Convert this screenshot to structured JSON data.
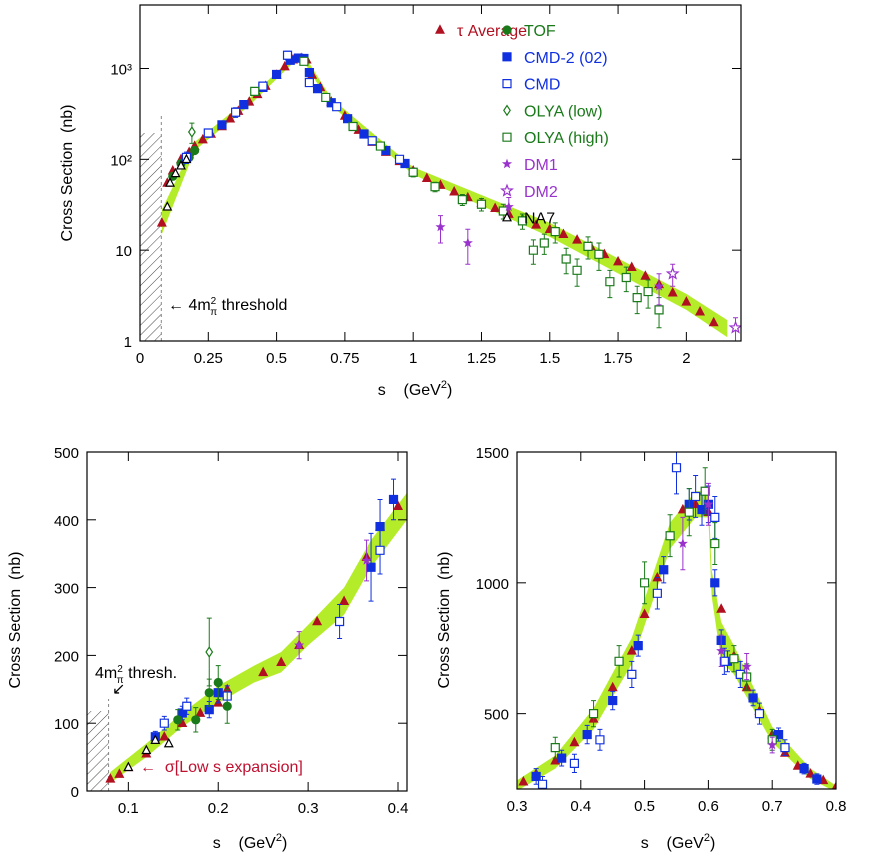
{
  "chart_data": [
    {
      "type": "scatter",
      "log": true,
      "xlim": [
        0,
        2.2
      ],
      "ylim": [
        1,
        5000
      ],
      "xticks": [
        0,
        0.25,
        0.5,
        0.75,
        1,
        1.25,
        1.5,
        1.75,
        2
      ],
      "yticks": [
        1,
        10,
        {
          "value": 100,
          "label": "10²"
        },
        {
          "value": 1000,
          "label": "10³"
        }
      ],
      "y_label": "Cross Section  (nb)",
      "x_label": {
        "text": "s    (GeV",
        "sup": "2",
        "close": ")"
      },
      "threshold": 0.078,
      "annotations": [
        {
          "text": "← 4m",
          "sup": "2",
          "sub": "π",
          "tail": " threshold",
          "color": "#000"
        }
      ],
      "band": {
        "color": "#b5ec2a",
        "x": [
          0.08,
          0.2,
          0.4,
          0.56,
          0.6,
          0.7,
          1.0,
          1.5,
          2.0,
          2.15
        ],
        "low": [
          15,
          125,
          390,
          1150,
          1180,
          390,
          68,
          14,
          2.2,
          1.1
        ],
        "high": [
          28,
          155,
          470,
          1350,
          1420,
          470,
          82,
          20,
          3.3,
          1.7
        ]
      },
      "series": [
        {
          "name": "τ Average",
          "color": "#b01020",
          "marker": "triangle",
          "x": [
            0.08,
            0.1,
            0.12,
            0.15,
            0.18,
            0.2,
            0.23,
            0.26,
            0.3,
            0.33,
            0.36,
            0.4,
            0.43,
            0.46,
            0.5,
            0.53,
            0.56,
            0.59,
            0.61,
            0.63,
            0.66,
            0.7,
            0.75,
            0.8,
            0.85,
            0.9,
            0.95,
            1.0,
            1.05,
            1.1,
            1.15,
            1.2,
            1.25,
            1.3,
            1.35,
            1.4,
            1.45,
            1.5,
            1.55,
            1.6,
            1.65,
            1.7,
            1.75,
            1.8,
            1.85,
            1.9,
            1.95,
            2.0,
            2.05,
            2.1
          ],
          "values": [
            20,
            55,
            75,
            100,
            120,
            140,
            165,
            190,
            230,
            280,
            340,
            430,
            520,
            640,
            850,
            1050,
            1250,
            1300,
            1250,
            850,
            620,
            430,
            300,
            210,
            155,
            120,
            95,
            75,
            62,
            52,
            44,
            38,
            33,
            29,
            25,
            22,
            19,
            17,
            15,
            13,
            11,
            9,
            7.5,
            6.5,
            5.2,
            4.2,
            3.4,
            2.7,
            2.1,
            1.6
          ]
        },
        {
          "name": "TOF",
          "color": "#1a7a1a",
          "marker": "circle",
          "x": [
            0.12,
            0.15,
            0.18,
            0.2
          ],
          "values": [
            65,
            90,
            105,
            125
          ]
        },
        {
          "name": "CMD-2 (02)",
          "color": "#1030e0",
          "marker": "square",
          "x": [
            0.3,
            0.38,
            0.45,
            0.5,
            0.55,
            0.58,
            0.6,
            0.62,
            0.65,
            0.7,
            0.76,
            0.82,
            0.9,
            0.97
          ],
          "values": [
            240,
            400,
            620,
            860,
            1230,
            1300,
            1290,
            900,
            600,
            420,
            280,
            190,
            125,
            90
          ]
        },
        {
          "name": "CMD",
          "color": "#1030e0",
          "marker": "square-open",
          "x": [
            0.17,
            0.25,
            0.35,
            0.45,
            0.54,
            0.62,
            0.72,
            0.85,
            0.95
          ],
          "values": [
            105,
            195,
            330,
            640,
            1400,
            700,
            380,
            160,
            100
          ],
          "errors": [
            15,
            20,
            40,
            60,
            150,
            60,
            30,
            15,
            10
          ]
        },
        {
          "name": "OLYA (low)",
          "color": "#1a7a1a",
          "marker": "diamond-open",
          "x": [
            0.19
          ],
          "values": [
            200
          ],
          "errors": [
            50
          ]
        },
        {
          "name": "OLYA (high)",
          "color": "#1a7a1a",
          "marker": "square-open",
          "x": [
            0.42,
            0.6,
            0.68,
            0.78,
            0.88,
            1.0,
            1.08,
            1.18,
            1.25,
            1.33,
            1.4,
            1.44,
            1.48,
            1.52,
            1.56,
            1.6,
            1.64,
            1.68,
            1.72,
            1.78,
            1.82,
            1.86,
            1.9
          ],
          "values": [
            560,
            1200,
            480,
            230,
            140,
            72,
            50,
            36,
            32,
            27,
            21,
            10,
            12,
            16,
            8,
            6,
            11,
            9,
            4.5,
            5,
            3,
            3.5,
            2.2
          ],
          "errors": [
            40,
            80,
            40,
            20,
            12,
            8,
            6,
            5,
            5,
            5,
            4,
            3,
            3,
            4,
            2.5,
            2,
            3,
            3,
            1.5,
            1.5,
            1,
            1.2,
            0.8
          ]
        },
        {
          "name": "DM1",
          "color": "#9933cc",
          "marker": "star",
          "x": [
            1.1,
            1.2,
            1.35,
            1.9
          ],
          "values": [
            18,
            12,
            30,
            4
          ],
          "errors": [
            6,
            5,
            8,
            1.5
          ]
        },
        {
          "name": "DM2",
          "color": "#9933cc",
          "marker": "star-open",
          "x": [
            1.95,
            2.18
          ],
          "values": [
            5.5,
            1.4
          ],
          "errors": [
            1.5,
            0.4
          ]
        },
        {
          "name": "NA7",
          "color": "#000000",
          "marker": "triangle-open",
          "x": [
            0.1,
            0.11,
            0.13,
            0.15,
            0.17
          ],
          "values": [
            30,
            55,
            70,
            85,
            100
          ]
        }
      ]
    },
    {
      "type": "scatter",
      "log": false,
      "xlim": [
        0.054,
        0.41
      ],
      "ylim": [
        0,
        500
      ],
      "xticks": [
        0.1,
        0.2,
        0.3,
        0.4
      ],
      "yticks": [
        0,
        100,
        200,
        300,
        400,
        500
      ],
      "y_label": "Cross Section  (nb)",
      "x_label": {
        "text": "s    (GeV",
        "sup": "2",
        "close": ")"
      },
      "threshold": 0.078,
      "annotations": [
        {
          "text": "4m",
          "sup": "2",
          "sub": "π",
          "tail": " thresh.",
          "color": "#000"
        },
        {
          "text": "↙",
          "color": "#000"
        },
        {
          "text": "←  σ[Low s expansion]",
          "color": "#c01030"
        }
      ],
      "band": {
        "color": "#b5ec2a",
        "x": [
          0.08,
          0.12,
          0.16,
          0.2,
          0.24,
          0.27,
          0.3,
          0.34,
          0.37,
          0.41
        ],
        "low": [
          12,
          50,
          95,
          130,
          160,
          175,
          215,
          260,
          330,
          400
        ],
        "high": [
          28,
          70,
          115,
          155,
          185,
          205,
          245,
          300,
          370,
          440
        ]
      },
      "series": [
        {
          "color": "#b01020",
          "marker": "triangle",
          "x": [
            0.08,
            0.09,
            0.1,
            0.12,
            0.14,
            0.16,
            0.18,
            0.2,
            0.21,
            0.25,
            0.27,
            0.29,
            0.31,
            0.34,
            0.365,
            0.38,
            0.4
          ],
          "values": [
            18,
            25,
            35,
            55,
            80,
            100,
            115,
            130,
            150,
            175,
            190,
            215,
            250,
            280,
            345,
            390,
            420
          ]
        },
        {
          "color": "#1030e0",
          "marker": "square",
          "x": [
            0.13,
            0.16,
            0.19,
            0.2,
            0.37,
            0.38,
            0.395
          ],
          "values": [
            80,
            115,
            120,
            145,
            330,
            390,
            430
          ],
          "errors": [
            8,
            10,
            12,
            15,
            50,
            40,
            30
          ]
        },
        {
          "color": "#1030e0",
          "marker": "square-open",
          "x": [
            0.14,
            0.165,
            0.21,
            0.335,
            0.38
          ],
          "values": [
            100,
            125,
            140,
            250,
            355
          ],
          "errors": [
            10,
            12,
            15,
            25,
            35
          ]
        },
        {
          "color": "#1a7a1a",
          "marker": "circle",
          "x": [
            0.155,
            0.175,
            0.19,
            0.2,
            0.21
          ],
          "values": [
            105,
            105,
            145,
            160,
            125
          ],
          "errors": [
            15,
            18,
            20,
            25,
            25
          ]
        },
        {
          "color": "#1a7a1a",
          "marker": "diamond-open",
          "x": [
            0.19
          ],
          "values": [
            205
          ],
          "errors": [
            50
          ]
        },
        {
          "color": "#000000",
          "marker": "triangle-open",
          "x": [
            0.1,
            0.12,
            0.13,
            0.145
          ],
          "values": [
            35,
            60,
            75,
            70
          ]
        },
        {
          "color": "#9933cc",
          "marker": "star",
          "x": [
            0.29,
            0.365
          ],
          "values": [
            215,
            340
          ],
          "errors": [
            20,
            30
          ]
        }
      ]
    },
    {
      "type": "scatter",
      "log": false,
      "xlim": [
        0.3,
        0.8
      ],
      "ylim": [
        212,
        1500
      ],
      "xticks": [
        0.3,
        0.4,
        0.5,
        0.6,
        0.7,
        0.8
      ],
      "yticks": [
        500,
        1000,
        1500
      ],
      "y_label": "Cross Section  (nb)",
      "x_label": {
        "text": "s    (GeV",
        "sup": "2",
        "close": ")"
      },
      "band": {
        "color": "#b5ec2a",
        "x": [
          0.3,
          0.36,
          0.42,
          0.48,
          0.54,
          0.58,
          0.6,
          0.605,
          0.62,
          0.64,
          0.7,
          0.76,
          0.8
        ],
        "low": [
          205,
          290,
          440,
          690,
          1130,
          1250,
          1250,
          950,
          700,
          650,
          390,
          250,
          200
        ],
        "high": [
          245,
          340,
          520,
          790,
          1230,
          1350,
          1350,
          1050,
          850,
          760,
          450,
          290,
          225
        ]
      },
      "series": [
        {
          "color": "#b01020",
          "marker": "triangle",
          "x": [
            0.31,
            0.33,
            0.36,
            0.39,
            0.42,
            0.45,
            0.48,
            0.5,
            0.52,
            0.54,
            0.56,
            0.58,
            0.6,
            0.62,
            0.64,
            0.66,
            0.68,
            0.7,
            0.72,
            0.74,
            0.76,
            0.78,
            0.8
          ],
          "values": [
            240,
            270,
            320,
            390,
            480,
            600,
            740,
            880,
            1020,
            1180,
            1280,
            1300,
            1270,
            900,
            720,
            600,
            510,
            420,
            350,
            300,
            270,
            245,
            220
          ]
        },
        {
          "color": "#1030e0",
          "marker": "square",
          "x": [
            0.33,
            0.37,
            0.41,
            0.45,
            0.49,
            0.53,
            0.57,
            0.59,
            0.6,
            0.61,
            0.62,
            0.63,
            0.67,
            0.71,
            0.75,
            0.77
          ],
          "values": [
            260,
            330,
            420,
            550,
            760,
            1050,
            1300,
            1280,
            1300,
            1000,
            780,
            700,
            560,
            420,
            290,
            250
          ],
          "errors": [
            30,
            30,
            35,
            35,
            40,
            50,
            60,
            60,
            70,
            50,
            40,
            40,
            30,
            25,
            20,
            20
          ]
        },
        {
          "color": "#1030e0",
          "marker": "square-open",
          "x": [
            0.34,
            0.39,
            0.43,
            0.48,
            0.52,
            0.55,
            0.58,
            0.61,
            0.625,
            0.65,
            0.68,
            0.72
          ],
          "values": [
            230,
            310,
            400,
            650,
            960,
            1440,
            1330,
            1250,
            700,
            650,
            500,
            370
          ],
          "errors": [
            30,
            35,
            40,
            50,
            60,
            100,
            80,
            80,
            50,
            50,
            40,
            30
          ]
        },
        {
          "color": "#1a7a1a",
          "marker": "square-open",
          "x": [
            0.36,
            0.42,
            0.46,
            0.5,
            0.54,
            0.57,
            0.595,
            0.61,
            0.64,
            0.66,
            0.7
          ],
          "values": [
            370,
            500,
            700,
            1000,
            1180,
            1270,
            1350,
            1150,
            710,
            640,
            400
          ],
          "errors": [
            40,
            50,
            60,
            80,
            80,
            90,
            90,
            80,
            50,
            50,
            40
          ]
        },
        {
          "color": "#9933cc",
          "marker": "star",
          "x": [
            0.56,
            0.6,
            0.62,
            0.66,
            0.7
          ],
          "values": [
            1150,
            1300,
            740,
            680,
            380
          ],
          "errors": [
            100,
            80,
            60,
            50,
            30
          ]
        }
      ]
    }
  ]
}
